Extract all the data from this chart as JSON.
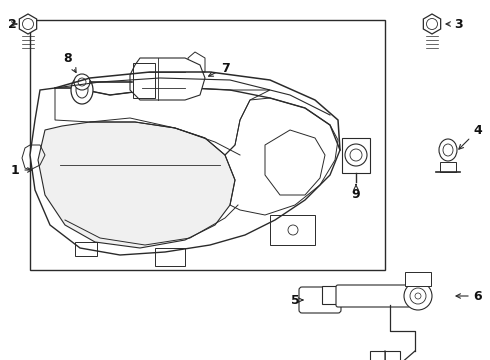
{
  "bg_color": "#ffffff",
  "line_color": "#2a2a2a",
  "label_color": "#111111",
  "figsize": [
    4.9,
    3.6
  ],
  "dpi": 100,
  "lw": 1.0
}
